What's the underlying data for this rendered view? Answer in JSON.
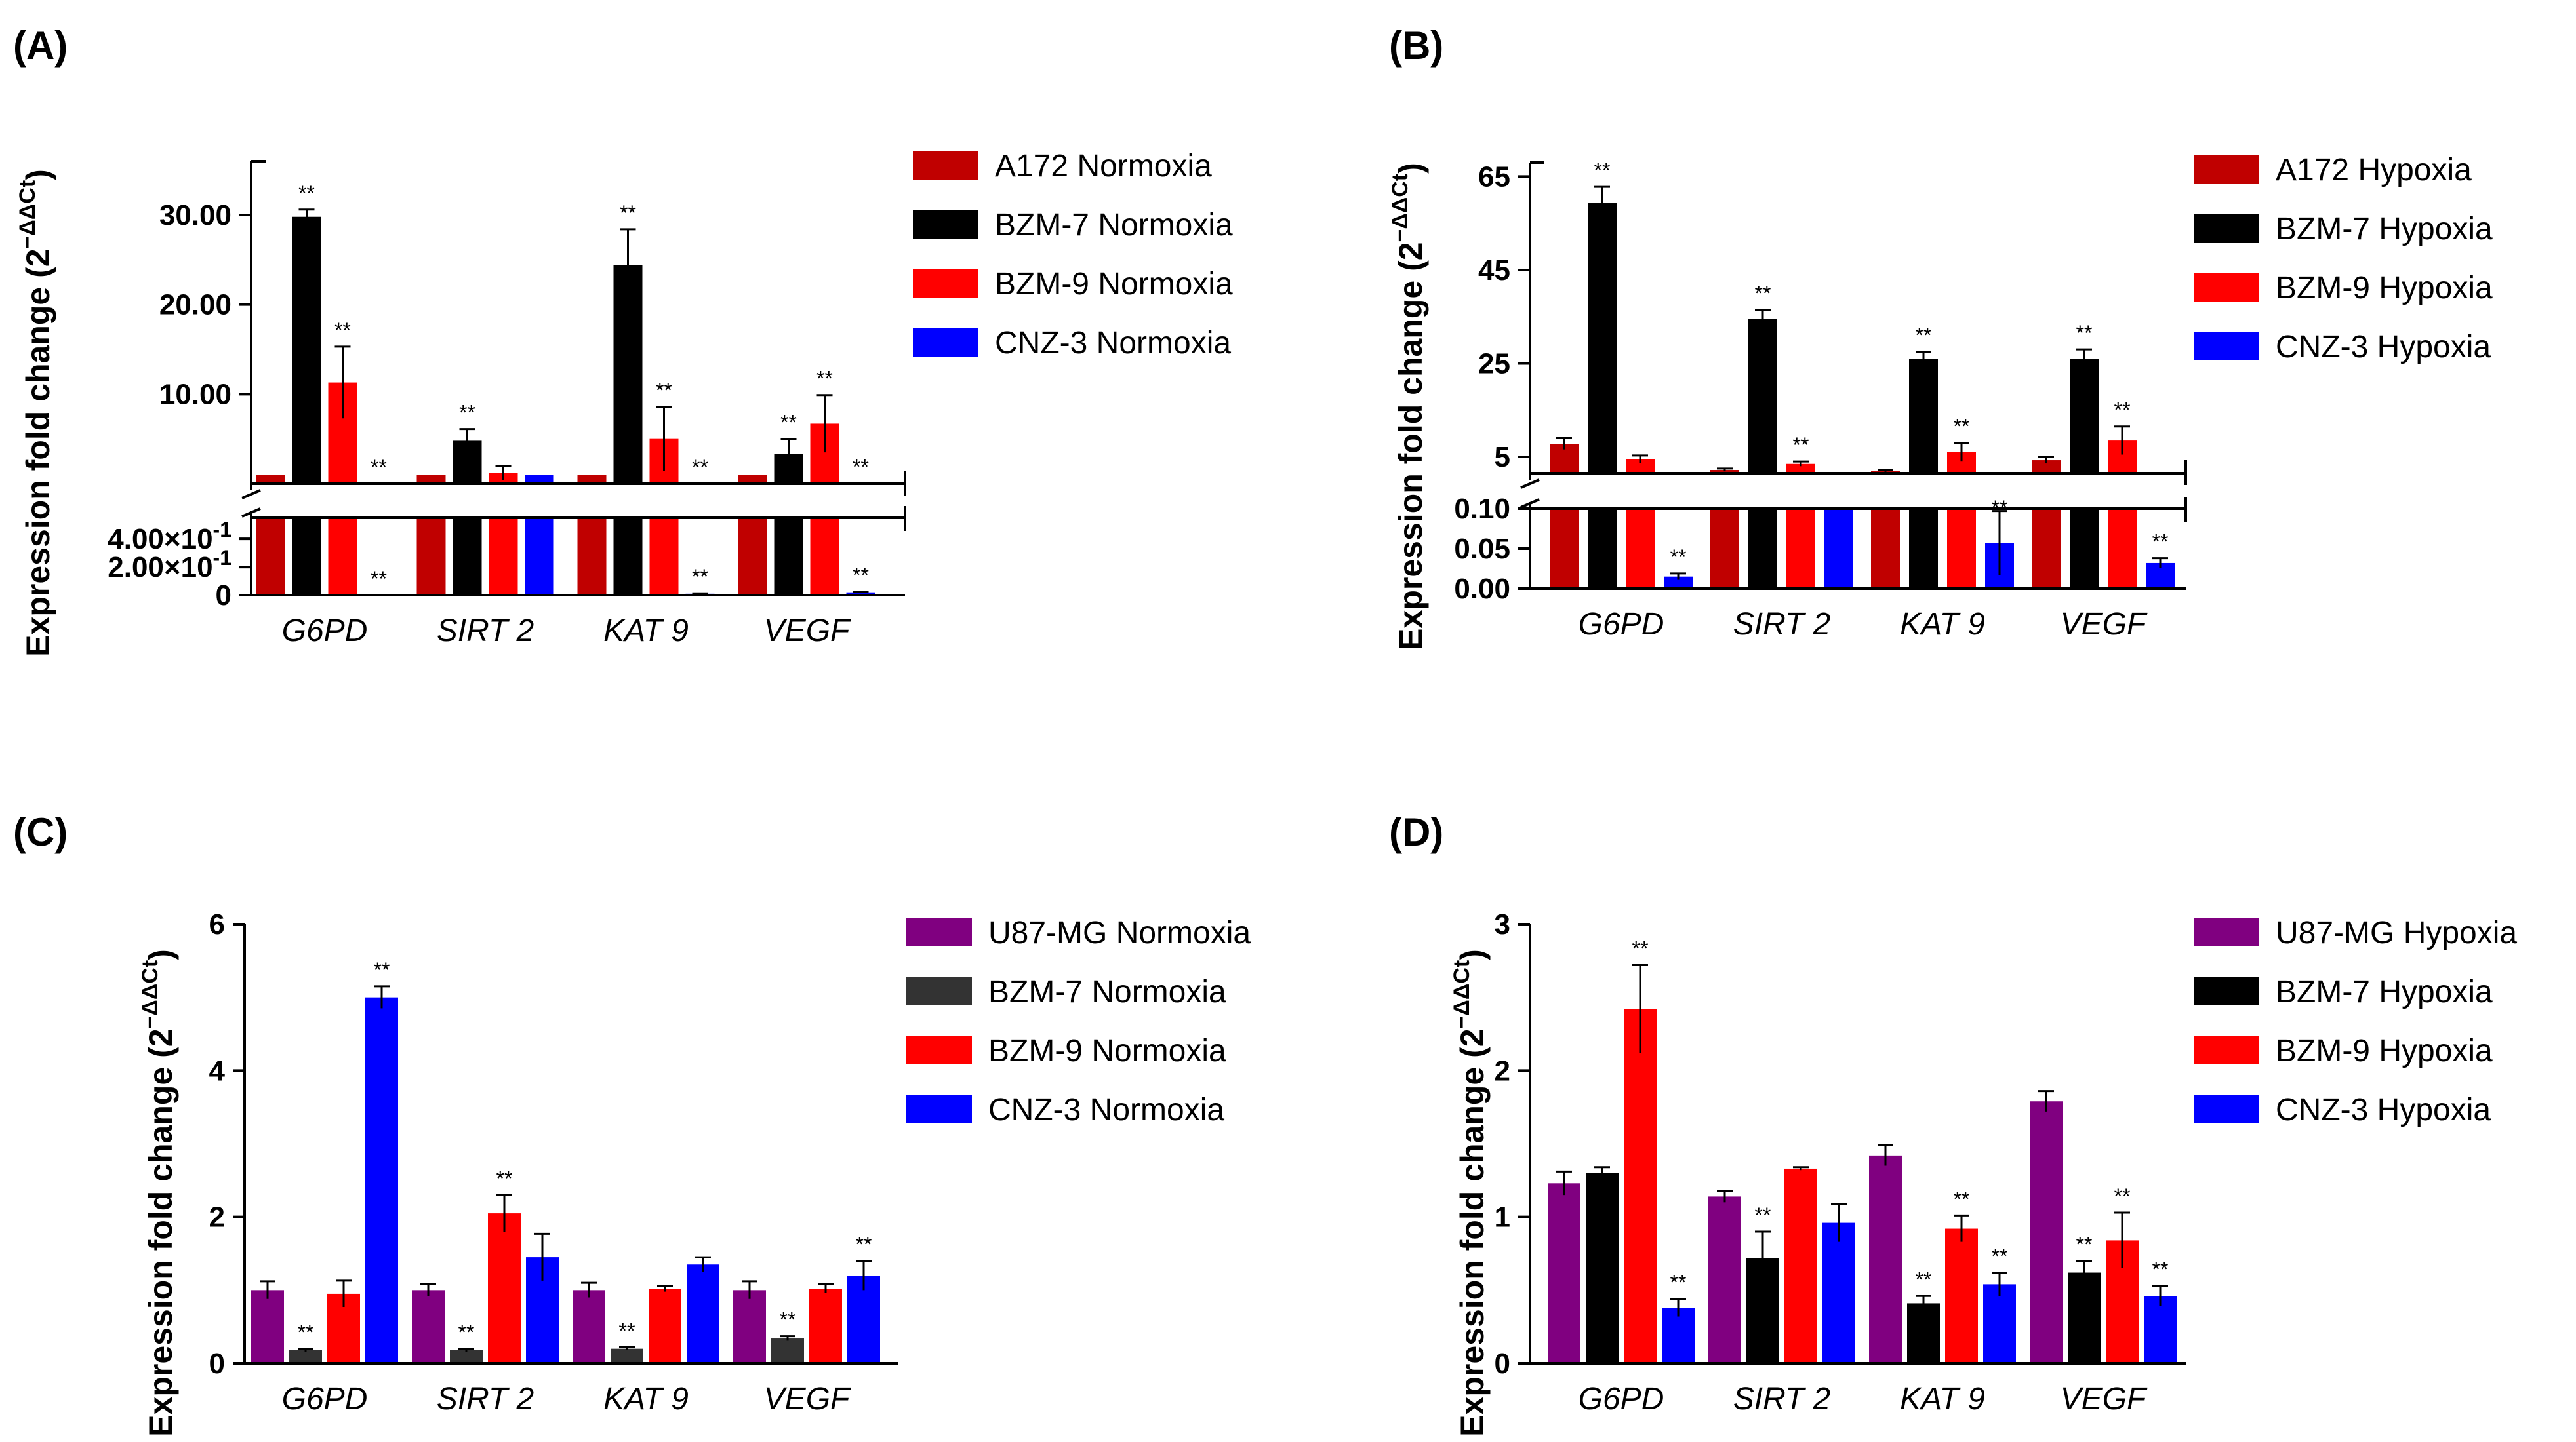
{
  "chart_data": [
    {
      "panel_label": "(A)",
      "type": "bar",
      "broken_axis": true,
      "ylabel": "Expression fold change (2",
      "ylabel_superscript": "−ΔΔCt",
      "ylabel_close": ")",
      "categories": [
        "G6PD",
        "SIRT 2",
        "KAT 9",
        "VEGF"
      ],
      "upper_ylim": [
        0,
        36
      ],
      "upper_ticks": [
        "10.00",
        "20.00",
        "30.00"
      ],
      "upper_tick_values": [
        10,
        20,
        30
      ],
      "lower_ylim": [
        0,
        0.55
      ],
      "lower_ticks": [
        "0",
        "2.00×10",
        "4.00×10"
      ],
      "lower_tick_exponents": [
        "",
        "-1",
        "-1"
      ],
      "lower_tick_values": [
        0,
        0.2,
        0.4
      ],
      "series": [
        {
          "name": "A172 Normoxia",
          "color": "#c00000",
          "values": [
            1,
            1,
            1,
            1
          ],
          "errors": [
            0,
            0,
            0,
            0
          ],
          "sig": [
            "",
            "",
            "",
            ""
          ]
        },
        {
          "name": "BZM-7 Normoxia",
          "color": "#000000",
          "values": [
            29.8,
            4.8,
            24.4,
            3.3
          ],
          "errors": [
            0.8,
            1.3,
            4.0,
            1.7
          ],
          "sig": [
            "**",
            "**",
            "**",
            "**"
          ]
        },
        {
          "name": "BZM-9 Normoxia",
          "color": "#ff0000",
          "values": [
            11.3,
            1.2,
            5.0,
            6.7
          ],
          "errors": [
            4.0,
            0.8,
            3.6,
            3.2
          ],
          "sig": [
            "**",
            "",
            "**",
            "**"
          ]
        },
        {
          "name": "CNZ-3 Normoxia",
          "color": "#0000ff",
          "values": [
            0.0,
            1.0,
            0.01,
            0.02
          ],
          "errors": [
            0,
            0,
            0.003,
            0.005
          ],
          "sig": [
            "**",
            "",
            "**",
            "**"
          ]
        }
      ]
    },
    {
      "panel_label": "(B)",
      "type": "bar",
      "broken_axis": true,
      "ylabel": "Expression fold change (2",
      "ylabel_superscript": "−ΔΔCt",
      "ylabel_close": ")",
      "categories": [
        "G6PD",
        "SIRT 2",
        "KAT 9",
        "VEGF"
      ],
      "upper_ylim": [
        1.5,
        68
      ],
      "upper_ticks": [
        "5",
        "25",
        "45",
        "65"
      ],
      "upper_tick_values": [
        5,
        25,
        45,
        65
      ],
      "lower_ylim": [
        0,
        0.1
      ],
      "lower_ticks": [
        "0.00",
        "0.05",
        "0.10"
      ],
      "lower_tick_values": [
        0,
        0.05,
        0.1
      ],
      "series": [
        {
          "name": "A172 Hypoxia",
          "color": "#c00000",
          "values": [
            7.8,
            2.2,
            2.0,
            4.3
          ],
          "errors": [
            1.2,
            0.3,
            0.2,
            0.7
          ],
          "sig": [
            "",
            "",
            "",
            ""
          ]
        },
        {
          "name": "BZM-7 Hypoxia",
          "color": "#000000",
          "values": [
            59.3,
            34.5,
            26.0,
            26.0
          ],
          "errors": [
            3.5,
            2.0,
            1.5,
            2.0
          ],
          "sig": [
            "**",
            "**",
            "**",
            "**"
          ]
        },
        {
          "name": "BZM-9 Hypoxia",
          "color": "#ff0000",
          "values": [
            4.5,
            3.5,
            6.0,
            8.5
          ],
          "errors": [
            0.8,
            0.5,
            2.0,
            3.0
          ],
          "sig": [
            "",
            "**",
            "**",
            "**"
          ]
        },
        {
          "name": "CNZ-3 Hypoxia",
          "color": "#0000ff",
          "values": [
            0.015,
            1.0,
            0.057,
            0.032
          ],
          "errors": [
            0.004,
            0,
            0.04,
            0.006
          ],
          "sig": [
            "**",
            "",
            "**",
            "**"
          ]
        }
      ]
    },
    {
      "panel_label": "(C)",
      "type": "bar",
      "broken_axis": false,
      "ylabel": "Expression fold change (2",
      "ylabel_superscript": "−ΔΔCt",
      "ylabel_close": ")",
      "categories": [
        "G6PD",
        "SIRT 2",
        "KAT 9",
        "VEGF"
      ],
      "ylim": [
        0,
        6
      ],
      "ticks": [
        "0",
        "2",
        "4",
        "6"
      ],
      "tick_values": [
        0,
        2,
        4,
        6
      ],
      "series": [
        {
          "name": "U87-MG Normoxia",
          "color": "#800080",
          "values": [
            1.0,
            1.0,
            1.0,
            1.0
          ],
          "errors": [
            0.12,
            0.08,
            0.1,
            0.12
          ],
          "sig": [
            "",
            "",
            "",
            ""
          ]
        },
        {
          "name": "BZM-7 Normoxia",
          "color": "#333333",
          "values": [
            0.18,
            0.18,
            0.2,
            0.34
          ],
          "errors": [
            0.02,
            0.02,
            0.02,
            0.03
          ],
          "sig": [
            "**",
            "**",
            "**",
            "**"
          ]
        },
        {
          "name": "BZM-9 Normoxia",
          "color": "#ff0000",
          "values": [
            0.95,
            2.05,
            1.02,
            1.02
          ],
          "errors": [
            0.18,
            0.25,
            0.04,
            0.06
          ],
          "sig": [
            "",
            "**",
            "",
            ""
          ]
        },
        {
          "name": "CNZ-3 Normoxia",
          "color": "#0000ff",
          "values": [
            5.0,
            1.45,
            1.35,
            1.2
          ],
          "errors": [
            0.15,
            0.32,
            0.1,
            0.2
          ],
          "sig": [
            "**",
            "",
            "",
            "**"
          ]
        }
      ]
    },
    {
      "panel_label": "(D)",
      "type": "bar",
      "broken_axis": false,
      "ylabel": "Expression fold change (2",
      "ylabel_superscript": "−ΔΔCt",
      "ylabel_close": ")",
      "categories": [
        "G6PD",
        "SIRT 2",
        "KAT 9",
        "VEGF"
      ],
      "ylim": [
        0,
        3
      ],
      "ticks": [
        "0",
        "1",
        "2",
        "3"
      ],
      "tick_values": [
        0,
        1,
        2,
        3
      ],
      "series": [
        {
          "name": "U87-MG Hypoxia",
          "color": "#800080",
          "values": [
            1.23,
            1.14,
            1.42,
            1.79
          ],
          "errors": [
            0.08,
            0.04,
            0.07,
            0.07
          ],
          "sig": [
            "",
            "",
            "",
            ""
          ]
        },
        {
          "name": "BZM-7 Hypoxia",
          "color": "#000000",
          "values": [
            1.3,
            0.72,
            0.41,
            0.62
          ],
          "errors": [
            0.04,
            0.18,
            0.05,
            0.08
          ],
          "sig": [
            "",
            "**",
            "**",
            "**"
          ]
        },
        {
          "name": "BZM-9 Hypoxia",
          "color": "#ff0000",
          "values": [
            2.42,
            1.33,
            0.92,
            0.84
          ],
          "errors": [
            0.3,
            0.01,
            0.09,
            0.19
          ],
          "sig": [
            "**",
            "",
            "**",
            "**"
          ]
        },
        {
          "name": "CNZ-3 Hypoxia",
          "color": "#0000ff",
          "values": [
            0.38,
            0.96,
            0.54,
            0.46
          ],
          "errors": [
            0.06,
            0.13,
            0.08,
            0.07
          ],
          "sig": [
            "**",
            "",
            "**",
            "**"
          ]
        }
      ]
    }
  ]
}
